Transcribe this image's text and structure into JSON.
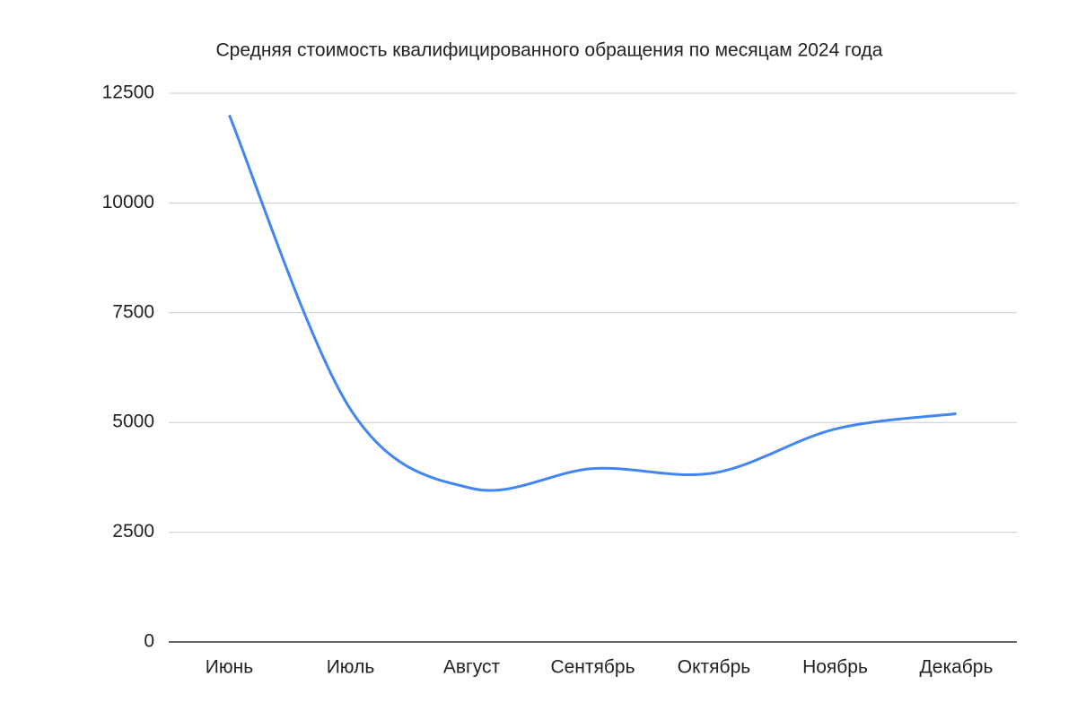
{
  "chart_data": {
    "type": "line",
    "title": "Средняя стоимость квалифицированного обращения по месяцам 2024 года",
    "categories": [
      "Июнь",
      "Июль",
      "Август",
      "Сентябрь",
      "Октябрь",
      "Ноябрь",
      "Декабрь"
    ],
    "series": [
      {
        "color": "#4285f4",
        "values": [
          12000,
          5300,
          3500,
          3950,
          3850,
          4850,
          5200
        ]
      }
    ],
    "ylim": [
      0,
      12500
    ],
    "yticks": [
      0,
      2500,
      5000,
      7500,
      10000,
      12500
    ],
    "grid": true,
    "smooth": true
  }
}
